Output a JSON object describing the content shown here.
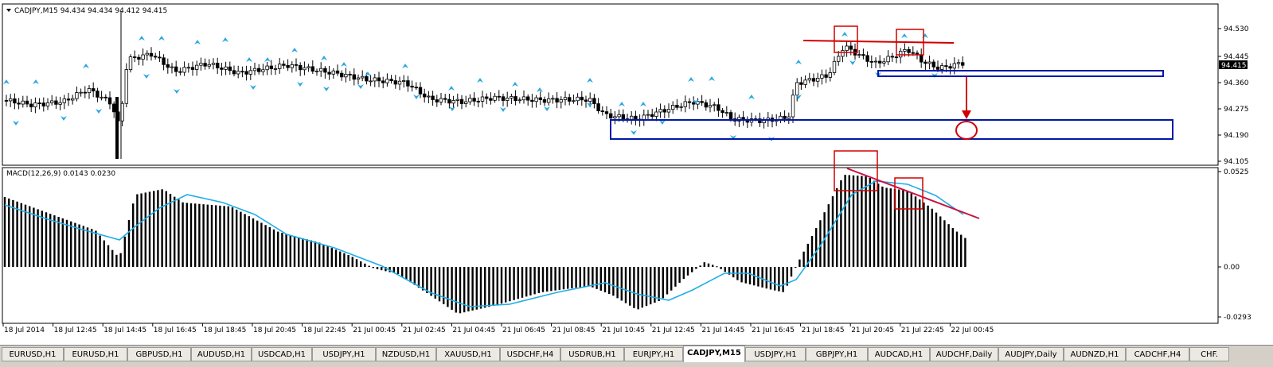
{
  "main_chart": {
    "header": "CADJPY,M15  94.434 94.434 94.412 94.415",
    "price_labels": [
      "94.530",
      "94.445",
      "94.360",
      "94.275",
      "94.190",
      "94.105"
    ],
    "current_price": "94.415"
  },
  "indicator": {
    "header": "MACD(12,26,9) 0.0143 0.0230",
    "labels": [
      "0.0525",
      "0.00",
      "-0.0293"
    ]
  },
  "time_axis": [
    "18 Jul 2014",
    "18 Jul 12:45",
    "18 Jul 14:45",
    "18 Jul 16:45",
    "18 Jul 18:45",
    "18 Jul 20:45",
    "18 Jul 22:45",
    "21 Jul 00:45",
    "21 Jul 02:45",
    "21 Jul 04:45",
    "21 Jul 06:45",
    "21 Jul 08:45",
    "21 Jul 10:45",
    "21 Jul 12:45",
    "21 Jul 14:45",
    "21 Jul 16:45",
    "21 Jul 18:45",
    "21 Jul 20:45",
    "21 Jul 22:45",
    "22 Jul 00:45"
  ],
  "tabs": [
    "EURUSD,H1",
    "EURUSD,H1",
    "GBPUSD,H1",
    "AUDUSD,H1",
    "USDCAD,H1",
    "USDJPY,H1",
    "NZDUSD,H1",
    "XAUUSD,H1",
    "USDCHF,H4",
    "USDRUB,H1",
    "EURJPY,H1",
    "CADJPY,M15",
    "USDJPY,H1",
    "GBPJPY,H1",
    "AUDCAD,H1",
    "AUDCHF,Daily",
    "AUDJPY,Daily",
    "AUDNZD,H1",
    "CADCHF,H4",
    "CHF."
  ],
  "active_tab": 11,
  "colors": {
    "signal_line": "#1eaee6",
    "fractal": "#2aa7e0",
    "annotation_red": "#d10000",
    "annotation_blue": "#0018a8",
    "trend_line": "#cc1040"
  }
}
